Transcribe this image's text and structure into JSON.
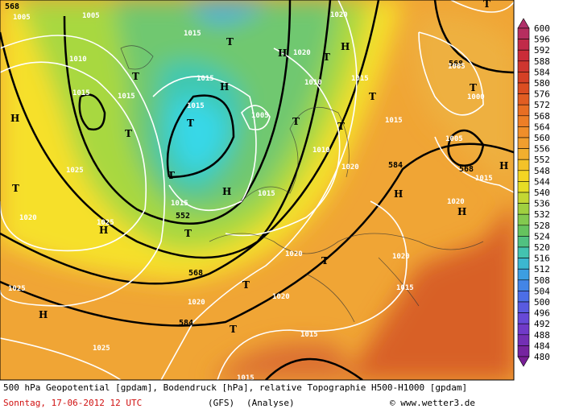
{
  "map": {
    "contour_labels": [
      "568",
      "552",
      "568",
      "584",
      "584",
      "568",
      "568"
    ],
    "isobar_labels": [
      "1005",
      "1005",
      "1010",
      "1015",
      "1015",
      "1015",
      "1015",
      "1015",
      "1020",
      "1020",
      "1005",
      "1010",
      "1015",
      "1015",
      "1010",
      "1025",
      "1020",
      "1015",
      "1015",
      "1020",
      "1025",
      "1020",
      "1020",
      "1015",
      "1025",
      "1020",
      "1020",
      "1015",
      "1025",
      "1015",
      "1005",
      "1000",
      "1005",
      "1015",
      "1020"
    ],
    "centers": [
      "H",
      "T",
      "T",
      "T",
      "T",
      "H",
      "T",
      "H",
      "T",
      "H",
      "T",
      "T",
      "H",
      "T",
      "T",
      "H",
      "H",
      "H",
      "H",
      "T",
      "T",
      "T",
      "T",
      "T",
      "H",
      "T"
    ]
  },
  "legend": {
    "levels": [
      "600",
      "596",
      "592",
      "588",
      "584",
      "580",
      "576",
      "572",
      "568",
      "564",
      "560",
      "556",
      "552",
      "548",
      "544",
      "540",
      "536",
      "532",
      "528",
      "524",
      "520",
      "516",
      "512",
      "508",
      "504",
      "500",
      "496",
      "492",
      "488",
      "484",
      "480"
    ]
  },
  "caption": {
    "line1": "500 hPa Geopotential [gpdam], Bodendruck [hPa], relative Topographie H500-H1000 [gpdam]",
    "date": "Sonntag, 17-06-2012  12 UTC",
    "model": "(GFS)",
    "run": "(Analyse)",
    "credit": "© www.wetter3.de"
  }
}
